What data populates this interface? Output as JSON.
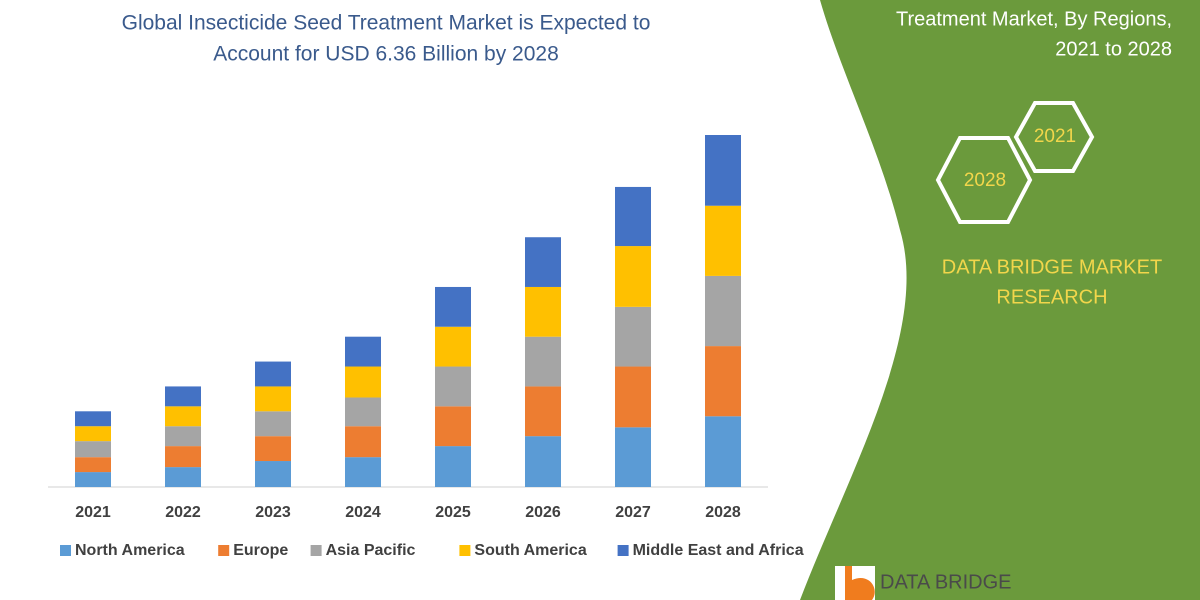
{
  "chart_data": {
    "type": "stacked-bar",
    "title": [
      "Global Insecticide Seed Treatment Market is Expected to",
      "Account for USD 6.36 Billion by 2028"
    ],
    "categories": [
      "2021",
      "2022",
      "2023",
      "2024",
      "2025",
      "2026",
      "2027",
      "2028"
    ],
    "series": [
      {
        "name": "North America",
        "color": "#5b9bd5",
        "values": [
          0.27,
          0.36,
          0.47,
          0.54,
          0.74,
          0.92,
          1.08,
          1.28
        ]
      },
      {
        "name": "Europe",
        "color": "#ed7d31",
        "values": [
          0.27,
          0.38,
          0.45,
          0.56,
          0.72,
          0.9,
          1.1,
          1.27
        ]
      },
      {
        "name": "Asia Pacific",
        "color": "#a5a5a5",
        "values": [
          0.29,
          0.36,
          0.45,
          0.52,
          0.72,
          0.9,
          1.08,
          1.27
        ]
      },
      {
        "name": "South America",
        "color": "#ffc000",
        "values": [
          0.27,
          0.36,
          0.45,
          0.56,
          0.72,
          0.9,
          1.1,
          1.27
        ]
      },
      {
        "name": "Middle East and Africa",
        "color": "#4472c4",
        "values": [
          0.27,
          0.36,
          0.45,
          0.54,
          0.72,
          0.9,
          1.07,
          1.28
        ]
      }
    ],
    "legend": "bottom"
  },
  "side_panel": {
    "heading": [
      "Treatment Market, By Regions,",
      "2021 to 2028"
    ],
    "badges": [
      "2021",
      "2028"
    ],
    "brand": [
      "DATA BRIDGE MARKET",
      "RESEARCH"
    ],
    "logo": "DATA BRIDGE"
  }
}
